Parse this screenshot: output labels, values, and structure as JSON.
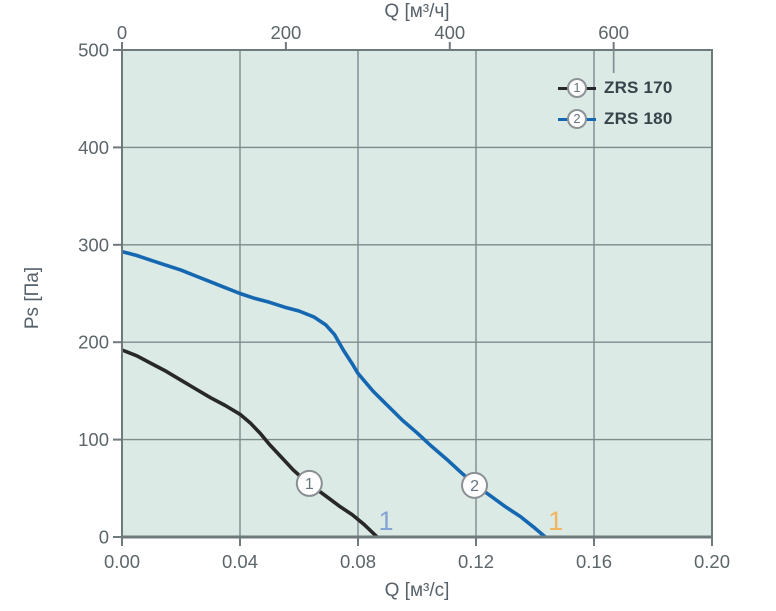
{
  "chart_data": {
    "type": "line",
    "title": "",
    "grid": true,
    "legend_position": "top-right-inside",
    "top_axis": {
      "title": "Q [м³/ч]",
      "ticks": [
        0,
        200,
        400,
        600
      ],
      "max": 720
    },
    "bottom_axis": {
      "title": "Q [м³/с]",
      "ticks": [
        0,
        0.04,
        0.08,
        0.12,
        0.16,
        0.2
      ],
      "tick_labels": [
        "0.00",
        "0.04",
        "0.08",
        "0.12",
        "0.16",
        "0.20"
      ],
      "max": 0.2
    },
    "y_axis": {
      "title": "Ps [Па]",
      "ticks": [
        0,
        100,
        200,
        300,
        400,
        500
      ],
      "max": 500
    },
    "grid_lines": {
      "x": [
        0.04,
        0.08,
        0.12,
        0.16
      ],
      "y": [
        100,
        200,
        300,
        400
      ]
    },
    "series": [
      {
        "name": "ZRS 170",
        "curve_number": "1",
        "color": "#282828",
        "marker": {
          "label": "1",
          "x": 0.0635,
          "y": 55
        },
        "points": [
          [
            0,
            192
          ],
          [
            0.005,
            186
          ],
          [
            0.01,
            178
          ],
          [
            0.015,
            170
          ],
          [
            0.02,
            161
          ],
          [
            0.025,
            152
          ],
          [
            0.03,
            143
          ],
          [
            0.035,
            135
          ],
          [
            0.04,
            126
          ],
          [
            0.0435,
            117
          ],
          [
            0.047,
            106
          ],
          [
            0.05,
            95
          ],
          [
            0.054,
            82
          ],
          [
            0.058,
            69
          ],
          [
            0.062,
            58
          ],
          [
            0.066,
            49
          ],
          [
            0.07,
            40
          ],
          [
            0.074,
            31
          ],
          [
            0.078,
            23
          ],
          [
            0.082,
            13
          ],
          [
            0.0865,
            0
          ]
        ]
      },
      {
        "name": "ZRS 180",
        "curve_number": "2",
        "color": "#1567b1",
        "marker": {
          "label": "2",
          "x": 0.1195,
          "y": 53
        },
        "points": [
          [
            0,
            293
          ],
          [
            0.005,
            289
          ],
          [
            0.01,
            284
          ],
          [
            0.015,
            279
          ],
          [
            0.02,
            274
          ],
          [
            0.025,
            268
          ],
          [
            0.03,
            262
          ],
          [
            0.035,
            256
          ],
          [
            0.04,
            250
          ],
          [
            0.045,
            245
          ],
          [
            0.05,
            241
          ],
          [
            0.055,
            236
          ],
          [
            0.06,
            232
          ],
          [
            0.065,
            226
          ],
          [
            0.069,
            218
          ],
          [
            0.072,
            208
          ],
          [
            0.075,
            192
          ],
          [
            0.078,
            178
          ],
          [
            0.08,
            168
          ],
          [
            0.085,
            150
          ],
          [
            0.09,
            135
          ],
          [
            0.095,
            120
          ],
          [
            0.1,
            107
          ],
          [
            0.105,
            93
          ],
          [
            0.11,
            80
          ],
          [
            0.115,
            66
          ],
          [
            0.12,
            53
          ],
          [
            0.125,
            42
          ],
          [
            0.13,
            31
          ],
          [
            0.135,
            21
          ],
          [
            0.14,
            9
          ],
          [
            0.1435,
            0
          ]
        ]
      }
    ],
    "annotations": [
      {
        "text": "1",
        "x": 0.0895,
        "y": 7,
        "color": "#84a4d4"
      },
      {
        "text": "1",
        "x": 0.147,
        "y": 7,
        "color": "#f1b45f"
      }
    ],
    "legend": {
      "entries": [
        {
          "num": "1",
          "label": "ZRS 170",
          "color": "#282828"
        },
        {
          "num": "2",
          "label": "ZRS 180",
          "color": "#1567b1"
        }
      ]
    },
    "colors": {
      "plot_bg": "#dbeae5",
      "grid": "#7f8a8d",
      "border": "#6f7a7d",
      "tick_text": "#5c666a",
      "marker_ring": "#8a8f93",
      "marker_text": "#66767f"
    }
  }
}
